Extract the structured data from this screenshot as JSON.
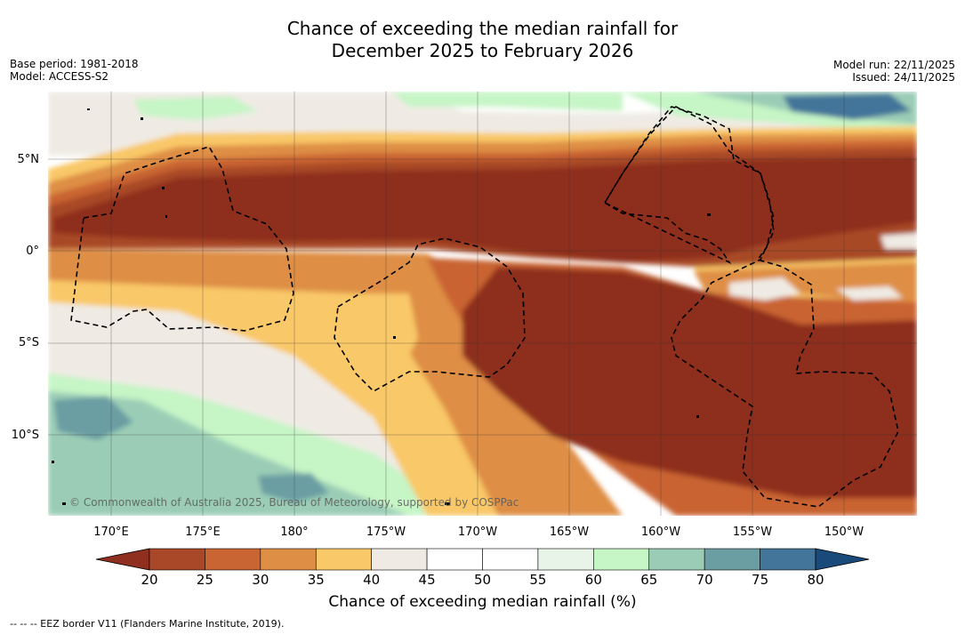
{
  "title": {
    "line1": "Chance of exceeding the median rainfall for",
    "line2": "December 2025 to February 2026"
  },
  "meta_left": {
    "base_period": "Base period: 1981-2018",
    "model": "Model: ACCESS-S2"
  },
  "meta_right": {
    "model_run": "Model run: 22/11/2025",
    "issued": "Issued: 24/11/2025"
  },
  "credit": "© Commonwealth of Australia 2025, Bureau of Meteorology, supported by COSPPac",
  "map": {
    "lon_ticks": [
      "170°E",
      "175°E",
      "180°",
      "175°W",
      "170°W",
      "165°W",
      "160°W",
      "155°W",
      "150°W"
    ],
    "lat_ticks": [
      "5°N",
      "0°",
      "5°S",
      "10°S"
    ],
    "lon_values": [
      170,
      175,
      180,
      185,
      190,
      195,
      200,
      205,
      210
    ],
    "lat_values": [
      5,
      0,
      -5,
      -10
    ],
    "lon_range": [
      165,
      212
    ],
    "lat_range": [
      -14.5,
      8.5
    ]
  },
  "colorbar": {
    "ticks": [
      "20",
      "25",
      "30",
      "35",
      "40",
      "45",
      "50",
      "55",
      "60",
      "65",
      "70",
      "75",
      "80"
    ],
    "under_color": "#8e2f1f",
    "over_color": "#1a4a7a",
    "colors": [
      "#a84828",
      "#c96433",
      "#de8e45",
      "#f9c868",
      "#efebe4",
      "#ffffff",
      "#ffffff",
      "#e7f4e7",
      "#c6f5c6",
      "#9bcdb6",
      "#6a9ea3",
      "#427599"
    ],
    "title": "Chance of exceeding median rainfall (%)"
  },
  "footnote": "--  --  -- EEZ border V11 (Flanders Marine Institute, 2019)."
}
